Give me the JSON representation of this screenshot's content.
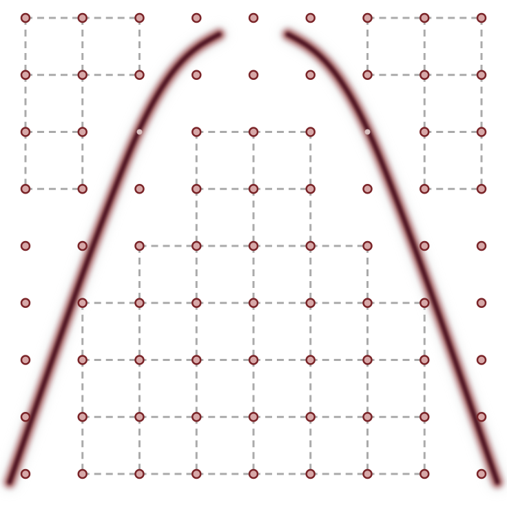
{
  "diagram": {
    "grid": {
      "rows": 9,
      "cols": 9
    },
    "colors": {
      "background": "#ffffff",
      "node_fill": "#d7a8a8",
      "node_stroke": "#7a2428",
      "edge": "#aaaaaa",
      "arc_core": "#3a0508",
      "arc_mid": "#8a1c22",
      "arc_fade": "#d8dcdc",
      "highlight_node": "#d9c0c0"
    },
    "edges": [
      {
        "from": [
          0,
          0
        ],
        "to": [
          0,
          1
        ]
      },
      {
        "from": [
          0,
          1
        ],
        "to": [
          0,
          2
        ]
      },
      {
        "from": [
          1,
          0
        ],
        "to": [
          1,
          1
        ]
      },
      {
        "from": [
          1,
          1
        ],
        "to": [
          1,
          2
        ]
      },
      {
        "from": [
          2,
          0
        ],
        "to": [
          2,
          1
        ]
      },
      {
        "from": [
          3,
          0
        ],
        "to": [
          3,
          1
        ]
      },
      {
        "from": [
          0,
          0
        ],
        "to": [
          1,
          0
        ]
      },
      {
        "from": [
          1,
          0
        ],
        "to": [
          2,
          0
        ]
      },
      {
        "from": [
          2,
          0
        ],
        "to": [
          3,
          0
        ]
      },
      {
        "from": [
          0,
          1
        ],
        "to": [
          1,
          1
        ]
      },
      {
        "from": [
          1,
          1
        ],
        "to": [
          2,
          1
        ]
      },
      {
        "from": [
          2,
          1
        ],
        "to": [
          3,
          1
        ]
      },
      {
        "from": [
          0,
          2
        ],
        "to": [
          1,
          2
        ]
      },
      {
        "from": [
          0,
          6
        ],
        "to": [
          0,
          7
        ]
      },
      {
        "from": [
          0,
          7
        ],
        "to": [
          0,
          8
        ]
      },
      {
        "from": [
          1,
          6
        ],
        "to": [
          1,
          7
        ]
      },
      {
        "from": [
          1,
          7
        ],
        "to": [
          1,
          8
        ]
      },
      {
        "from": [
          2,
          7
        ],
        "to": [
          2,
          8
        ]
      },
      {
        "from": [
          3,
          7
        ],
        "to": [
          3,
          8
        ]
      },
      {
        "from": [
          0,
          6
        ],
        "to": [
          1,
          6
        ]
      },
      {
        "from": [
          0,
          7
        ],
        "to": [
          1,
          7
        ]
      },
      {
        "from": [
          1,
          7
        ],
        "to": [
          2,
          7
        ]
      },
      {
        "from": [
          2,
          7
        ],
        "to": [
          3,
          7
        ]
      },
      {
        "from": [
          0,
          8
        ],
        "to": [
          1,
          8
        ]
      },
      {
        "from": [
          1,
          8
        ],
        "to": [
          2,
          8
        ]
      },
      {
        "from": [
          2,
          8
        ],
        "to": [
          3,
          8
        ]
      },
      {
        "from": [
          2,
          3
        ],
        "to": [
          2,
          4
        ]
      },
      {
        "from": [
          2,
          4
        ],
        "to": [
          2,
          5
        ]
      },
      {
        "from": [
          3,
          3
        ],
        "to": [
          3,
          4
        ]
      },
      {
        "from": [
          3,
          4
        ],
        "to": [
          3,
          5
        ]
      },
      {
        "from": [
          2,
          3
        ],
        "to": [
          3,
          3
        ]
      },
      {
        "from": [
          3,
          3
        ],
        "to": [
          4,
          3
        ]
      },
      {
        "from": [
          2,
          4
        ],
        "to": [
          3,
          4
        ]
      },
      {
        "from": [
          3,
          4
        ],
        "to": [
          4,
          4
        ]
      },
      {
        "from": [
          2,
          5
        ],
        "to": [
          3,
          5
        ]
      },
      {
        "from": [
          3,
          5
        ],
        "to": [
          4,
          5
        ]
      },
      {
        "from": [
          4,
          2
        ],
        "to": [
          4,
          3
        ]
      },
      {
        "from": [
          4,
          3
        ],
        "to": [
          4,
          4
        ]
      },
      {
        "from": [
          4,
          4
        ],
        "to": [
          4,
          5
        ]
      },
      {
        "from": [
          4,
          5
        ],
        "to": [
          4,
          6
        ]
      },
      {
        "from": [
          4,
          2
        ],
        "to": [
          5,
          2
        ]
      },
      {
        "from": [
          4,
          6
        ],
        "to": [
          5,
          6
        ]
      },
      {
        "from": [
          5,
          1
        ],
        "to": [
          5,
          2
        ]
      },
      {
        "from": [
          5,
          2
        ],
        "to": [
          5,
          3
        ]
      },
      {
        "from": [
          5,
          3
        ],
        "to": [
          5,
          4
        ]
      },
      {
        "from": [
          5,
          4
        ],
        "to": [
          5,
          5
        ]
      },
      {
        "from": [
          5,
          5
        ],
        "to": [
          5,
          6
        ]
      },
      {
        "from": [
          5,
          6
        ],
        "to": [
          5,
          7
        ]
      },
      {
        "from": [
          6,
          1
        ],
        "to": [
          6,
          2
        ]
      },
      {
        "from": [
          6,
          2
        ],
        "to": [
          6,
          3
        ]
      },
      {
        "from": [
          6,
          3
        ],
        "to": [
          6,
          4
        ]
      },
      {
        "from": [
          6,
          4
        ],
        "to": [
          6,
          5
        ]
      },
      {
        "from": [
          6,
          5
        ],
        "to": [
          6,
          6
        ]
      },
      {
        "from": [
          6,
          6
        ],
        "to": [
          6,
          7
        ]
      },
      {
        "from": [
          7,
          1
        ],
        "to": [
          7,
          2
        ]
      },
      {
        "from": [
          7,
          2
        ],
        "to": [
          7,
          3
        ]
      },
      {
        "from": [
          7,
          3
        ],
        "to": [
          7,
          4
        ]
      },
      {
        "from": [
          7,
          4
        ],
        "to": [
          7,
          5
        ]
      },
      {
        "from": [
          7,
          5
        ],
        "to": [
          7,
          6
        ]
      },
      {
        "from": [
          7,
          6
        ],
        "to": [
          7,
          7
        ]
      },
      {
        "from": [
          8,
          1
        ],
        "to": [
          8,
          2
        ]
      },
      {
        "from": [
          8,
          2
        ],
        "to": [
          8,
          3
        ]
      },
      {
        "from": [
          8,
          3
        ],
        "to": [
          8,
          4
        ]
      },
      {
        "from": [
          8,
          4
        ],
        "to": [
          8,
          5
        ]
      },
      {
        "from": [
          8,
          5
        ],
        "to": [
          8,
          6
        ]
      },
      {
        "from": [
          8,
          6
        ],
        "to": [
          8,
          7
        ]
      },
      {
        "from": [
          4,
          3
        ],
        "to": [
          5,
          3
        ]
      },
      {
        "from": [
          4,
          4
        ],
        "to": [
          5,
          4
        ]
      },
      {
        "from": [
          4,
          5
        ],
        "to": [
          5,
          5
        ]
      },
      {
        "from": [
          5,
          1
        ],
        "to": [
          6,
          1
        ]
      },
      {
        "from": [
          6,
          1
        ],
        "to": [
          7,
          1
        ]
      },
      {
        "from": [
          7,
          1
        ],
        "to": [
          8,
          1
        ]
      },
      {
        "from": [
          5,
          2
        ],
        "to": [
          6,
          2
        ]
      },
      {
        "from": [
          6,
          2
        ],
        "to": [
          7,
          2
        ]
      },
      {
        "from": [
          7,
          2
        ],
        "to": [
          8,
          2
        ]
      },
      {
        "from": [
          5,
          3
        ],
        "to": [
          6,
          3
        ]
      },
      {
        "from": [
          6,
          3
        ],
        "to": [
          7,
          3
        ]
      },
      {
        "from": [
          7,
          3
        ],
        "to": [
          8,
          3
        ]
      },
      {
        "from": [
          5,
          4
        ],
        "to": [
          6,
          4
        ]
      },
      {
        "from": [
          6,
          4
        ],
        "to": [
          7,
          4
        ]
      },
      {
        "from": [
          7,
          4
        ],
        "to": [
          8,
          4
        ]
      },
      {
        "from": [
          5,
          5
        ],
        "to": [
          6,
          5
        ]
      },
      {
        "from": [
          6,
          5
        ],
        "to": [
          7,
          5
        ]
      },
      {
        "from": [
          7,
          5
        ],
        "to": [
          8,
          5
        ]
      },
      {
        "from": [
          5,
          6
        ],
        "to": [
          6,
          6
        ]
      },
      {
        "from": [
          6,
          6
        ],
        "to": [
          7,
          6
        ]
      },
      {
        "from": [
          7,
          6
        ],
        "to": [
          8,
          6
        ]
      },
      {
        "from": [
          5,
          7
        ],
        "to": [
          6,
          7
        ]
      },
      {
        "from": [
          6,
          7
        ],
        "to": [
          7,
          7
        ]
      },
      {
        "from": [
          7,
          7
        ],
        "to": [
          8,
          7
        ]
      }
    ],
    "highlighted_nodes": [
      [
        2,
        2
      ],
      [
        2,
        6
      ]
    ],
    "arcs": [
      "left-arc",
      "right-arc"
    ]
  }
}
